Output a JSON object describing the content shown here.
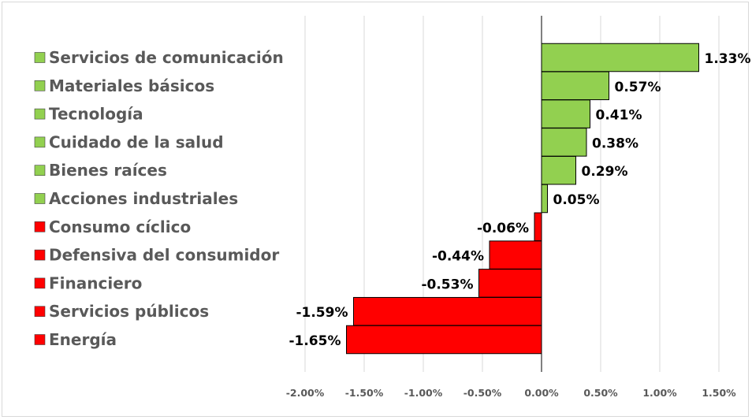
{
  "chart_data": {
    "type": "bar",
    "orientation": "horizontal",
    "categories": [
      "Servicios de comunicación",
      "Materiales básicos",
      "Tecnología",
      "Cuidado de la salud",
      "Bienes raíces",
      "Acciones industriales",
      "Consumo cíclico",
      "Defensiva del consumidor",
      "Financiero",
      "Servicios públicos",
      "Energía"
    ],
    "values": [
      1.33,
      0.57,
      0.41,
      0.38,
      0.29,
      0.05,
      -0.06,
      -0.44,
      -0.53,
      -1.59,
      -1.65
    ],
    "value_labels": [
      "1.33%",
      "0.57%",
      "0.41%",
      "0.38%",
      "0.29%",
      "0.05%",
      "-0.06%",
      "-0.44%",
      "-0.53%",
      "-1.59%",
      "-1.65%"
    ],
    "x_ticks": [
      -2.0,
      -1.5,
      -1.0,
      -0.5,
      0.0,
      0.5,
      1.0,
      1.5
    ],
    "x_tick_labels": [
      "-2.00%",
      "-1.50%",
      "-1.00%",
      "-0.50%",
      "0.00%",
      "0.50%",
      "1.00%",
      "1.50%"
    ],
    "xlim": [
      -2.0,
      1.75
    ],
    "grid": true,
    "legend": "left",
    "colors": {
      "positive": "#92d050",
      "negative": "#ff0000",
      "grid": "#d9d9d9",
      "text": "#595959"
    }
  }
}
